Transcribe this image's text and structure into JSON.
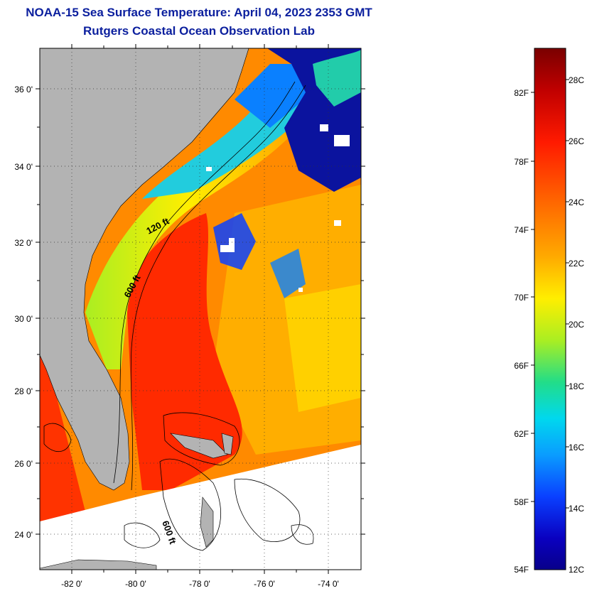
{
  "title": {
    "line1": "NOAA-15 Sea Surface Temperature:  April 04, 2023 2353 GMT",
    "line2": "Rutgers Coastal Ocean Observation Lab"
  },
  "map": {
    "lat_ticks": [
      "36 0'",
      "34 0'",
      "32 0'",
      "30 0'",
      "28 0'",
      "26 0'",
      "24 0'"
    ],
    "lon_ticks": [
      "-82 0'",
      "-80 0'",
      "-78 0'",
      "-76 0'",
      "-74 0'"
    ],
    "contours": {
      "shelf_120": "120 ft",
      "shelf_600": "600 ft",
      "bahamas_600": "600 ft"
    },
    "colors": {
      "land": "#b3b3b3",
      "no_data": "#ffffff",
      "cold_water": "#0b139e",
      "frame": "#000000"
    }
  },
  "colorbar": {
    "fahrenheit": [
      "82F",
      "78F",
      "74F",
      "70F",
      "66F",
      "62F",
      "58F",
      "54F"
    ],
    "celsius": [
      "28C",
      "26C",
      "24C",
      "22C",
      "20C",
      "18C",
      "16C",
      "14C",
      "12C"
    ],
    "stops": [
      "#7a0000",
      "#c00000",
      "#ff1a00",
      "#ff6a00",
      "#ffaa00",
      "#ffee00",
      "#aaee22",
      "#22dd88",
      "#00d8ee",
      "#0a9cff",
      "#0a40ff",
      "#0a00c0",
      "#08008a"
    ]
  }
}
